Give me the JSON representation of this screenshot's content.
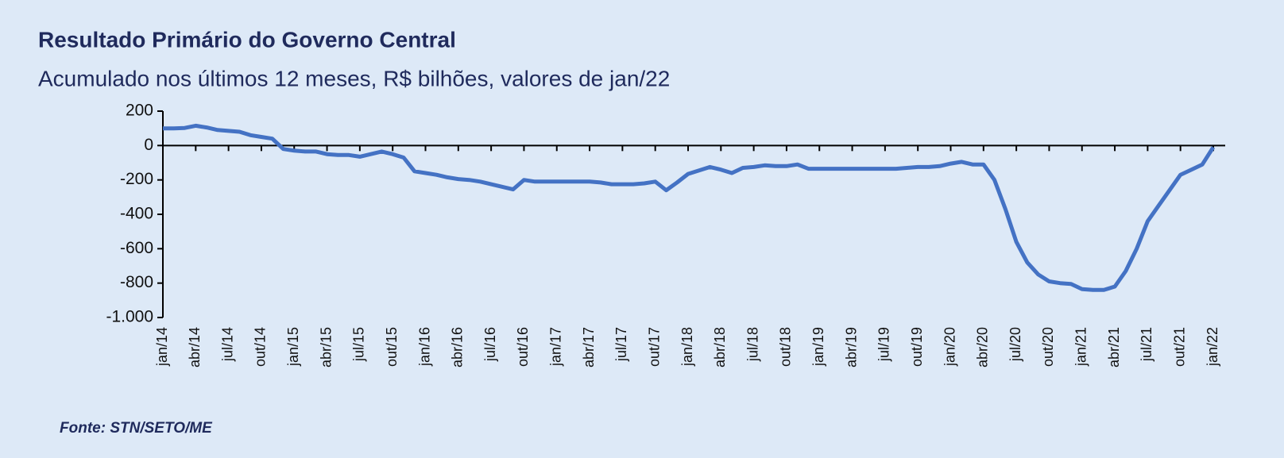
{
  "chart_data": {
    "type": "line",
    "title": "Resultado Primário do Governo Central",
    "subtitle": "Acumulado nos últimos 12 meses, R$ bilhões, valores de jan/22",
    "source": "Fonte: STN/SETO/ME",
    "categories": [
      "jan/14",
      null,
      null,
      "abr/14",
      null,
      null,
      "jul/14",
      null,
      null,
      "out/14",
      null,
      null,
      "jan/15",
      null,
      null,
      "abr/15",
      null,
      null,
      "jul/15",
      null,
      null,
      "out/15",
      null,
      null,
      "jan/16",
      null,
      null,
      "abr/16",
      null,
      null,
      "jul/16",
      null,
      null,
      "out/16",
      null,
      null,
      "jan/17",
      null,
      null,
      "abr/17",
      null,
      null,
      "jul/17",
      null,
      null,
      "out/17",
      null,
      null,
      "jan/18",
      null,
      null,
      "abr/18",
      null,
      null,
      "jul/18",
      null,
      null,
      "out/18",
      null,
      null,
      "jan/19",
      null,
      null,
      "abr/19",
      null,
      null,
      "jul/19",
      null,
      null,
      "out/19",
      null,
      null,
      "jan/20",
      null,
      null,
      "abr/20",
      null,
      null,
      "jul/20",
      null,
      null,
      "out/20",
      null,
      null,
      "jan/21",
      null,
      null,
      "abr/21",
      null,
      null,
      "jul/21",
      null,
      null,
      "out/21",
      null,
      null,
      "jan/22"
    ],
    "values": [
      100,
      100,
      102,
      115,
      105,
      90,
      85,
      80,
      60,
      50,
      40,
      -20,
      -30,
      -35,
      -35,
      -50,
      -55,
      -55,
      -65,
      -50,
      -35,
      -50,
      -70,
      -150,
      -160,
      -170,
      -185,
      -195,
      -200,
      -210,
      -225,
      -240,
      -255,
      -200,
      -210,
      -210,
      -210,
      -210,
      -210,
      -210,
      -215,
      -225,
      -225,
      -225,
      -220,
      -210,
      -260,
      -215,
      -165,
      -145,
      -125,
      -140,
      -160,
      -130,
      -125,
      -115,
      -120,
      -120,
      -110,
      -135,
      -135,
      -135,
      -135,
      -135,
      -135,
      -135,
      -135,
      -135,
      -130,
      -125,
      -125,
      -120,
      -105,
      -95,
      -110,
      -110,
      -200,
      -370,
      -560,
      -680,
      -750,
      -790,
      -800,
      -805,
      -835,
      -840,
      -840,
      -820,
      -730,
      -600,
      -440,
      -350,
      -260,
      -170,
      -140,
      -110,
      -10
    ],
    "color": "#4472c4",
    "ylim": [
      -1000,
      200
    ],
    "yticks": [
      200,
      0,
      -200,
      -400,
      -600,
      -800,
      {
        "value": -1000,
        "label": "-1.000"
      }
    ]
  }
}
